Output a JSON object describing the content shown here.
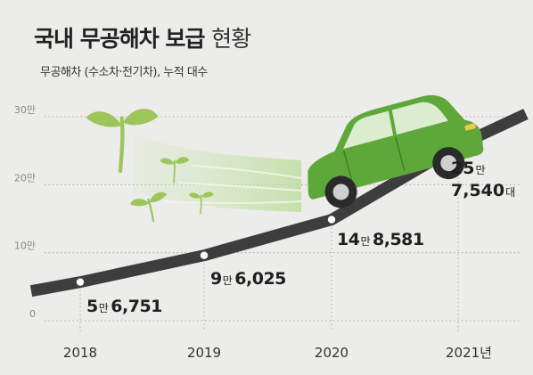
{
  "title_main": "국내 무공해차 보급",
  "title_light": "현황",
  "subtitle": "무공해차 (수소차·전기차), 누적 대수",
  "colors": {
    "background": "#ececea",
    "road": "#3d3d3d",
    "grid": "#9a9a9a",
    "car_green": "#5ea83a",
    "car_dark": "#3f7f24",
    "sprout_green": "#9cc55a"
  },
  "chart_data": {
    "type": "line",
    "title": "국내 무공해차 보급 현황",
    "subtitle": "무공해차 (수소차·전기차), 누적 대수",
    "x": [
      "2018",
      "2019",
      "2020",
      "2021년"
    ],
    "values": [
      56751,
      96025,
      148581,
      257540
    ],
    "ylim": [
      0,
      300000
    ],
    "y_ticks": [
      {
        "value": 0,
        "label": "0"
      },
      {
        "value": 100000,
        "label": "10만"
      },
      {
        "value": 200000,
        "label": "20만"
      },
      {
        "value": 300000,
        "label": "30만"
      }
    ],
    "point_labels": [
      {
        "big": "5",
        "unit": "만",
        "rest": "6,751"
      },
      {
        "big": "9",
        "unit": "만",
        "rest": "6,025"
      },
      {
        "big": "14",
        "unit": "만",
        "rest": "8,581"
      },
      {
        "big": "25",
        "unit": "만",
        "rest": "7,540",
        "suffix": "대"
      }
    ],
    "grid": true,
    "legend": "none"
  }
}
